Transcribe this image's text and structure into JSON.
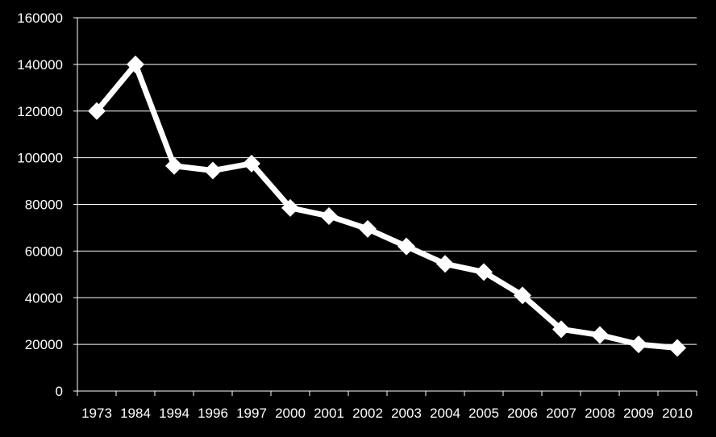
{
  "colors": {
    "background": "#000000",
    "foreground": "#ffffff",
    "gridline": "#ffffff",
    "series": "#ffffff"
  },
  "chart_data": {
    "type": "line",
    "title": "",
    "xlabel": "",
    "ylabel": "",
    "categories": [
      "1973",
      "1984",
      "1994",
      "1996",
      "1997",
      "2000",
      "2001",
      "2002",
      "2003",
      "2004",
      "2005",
      "2006",
      "2007",
      "2008",
      "2009",
      "2010"
    ],
    "series": [
      {
        "values": [
          120000,
          140000,
          96500,
          94500,
          97500,
          78500,
          75000,
          69500,
          62000,
          54500,
          51000,
          41000,
          26500,
          24000,
          20000,
          18500
        ],
        "marker": "diamond",
        "color": "#ffffff"
      }
    ],
    "ylim": [
      0,
      160000
    ],
    "yticks": [
      "0",
      "20000",
      "40000",
      "60000",
      "80000",
      "100000",
      "120000",
      "140000",
      "160000"
    ],
    "grid": true,
    "legend": "none"
  }
}
